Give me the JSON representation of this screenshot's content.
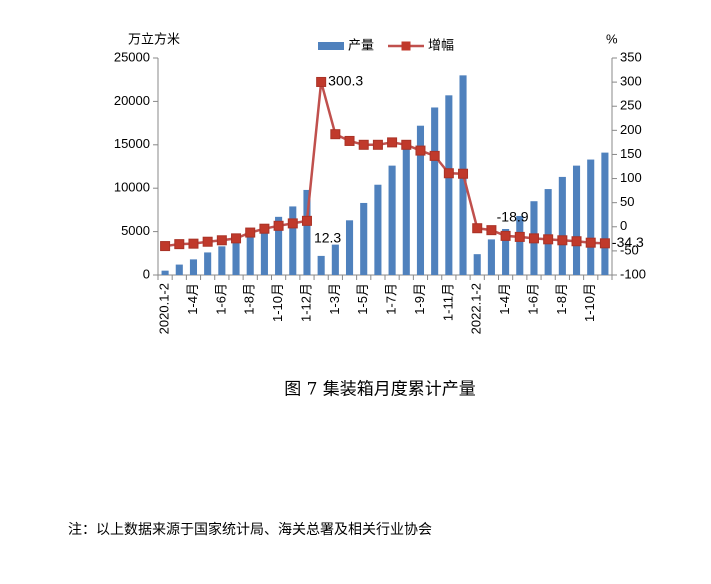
{
  "chart_data": {
    "type": "bar_line",
    "y_label": "万立方米",
    "y2_label": "%",
    "caption": "图 7  集装箱月度累计产量",
    "note": "注：以上数据来源于国家统计局、海关总署及相关行业协会",
    "categories": [
      "2020.1-2",
      null,
      "1-4月",
      null,
      "1-6月",
      null,
      "1-8月",
      null,
      "1-10月",
      null,
      "1-12月",
      null,
      "1-3月",
      null,
      "1-5月",
      null,
      "1-7月",
      null,
      "1-9月",
      null,
      "1-11月",
      null,
      "2022.1-2",
      null,
      "1-4月",
      null,
      "1-6月",
      null,
      "1-8月",
      null,
      "1-10月",
      null
    ],
    "ylim": [
      0,
      25000
    ],
    "yticks": [
      0,
      5000,
      10000,
      15000,
      20000,
      25000
    ],
    "y2lim": [
      -100,
      350
    ],
    "y2ticks": [
      -100,
      -50,
      0,
      50,
      100,
      150,
      200,
      250,
      300,
      350
    ],
    "series": [
      {
        "name": "产量",
        "type": "bar",
        "color": "#4f81bd",
        "values": [
          500,
          1200,
          1800,
          2600,
          3300,
          4000,
          4600,
          5500,
          6700,
          7900,
          9800,
          2200,
          3500,
          6300,
          8300,
          10400,
          12600,
          14800,
          17200,
          19300,
          20700,
          23000,
          2400,
          4100,
          5300,
          6800,
          8500,
          9900,
          11300,
          12600,
          13300,
          14100
        ]
      },
      {
        "name": "增幅",
        "type": "line",
        "axis": "y2",
        "color": "#c0504d",
        "values": [
          -40,
          -36,
          -35,
          -31,
          -28,
          -24,
          -12,
          -4,
          2,
          7,
          12.3,
          300.3,
          192,
          178,
          170,
          170,
          175,
          170,
          158,
          147,
          111,
          110,
          -3,
          -7,
          -18.9,
          -21,
          -24,
          -26,
          -28,
          -30,
          -33,
          -34.3
        ],
        "value_labels": [
          null,
          null,
          null,
          null,
          null,
          null,
          null,
          null,
          null,
          null,
          "12.3",
          "300.3",
          null,
          null,
          null,
          null,
          null,
          null,
          null,
          null,
          null,
          null,
          null,
          null,
          "-18.9",
          null,
          null,
          null,
          null,
          null,
          null,
          "-34.3"
        ]
      }
    ]
  }
}
